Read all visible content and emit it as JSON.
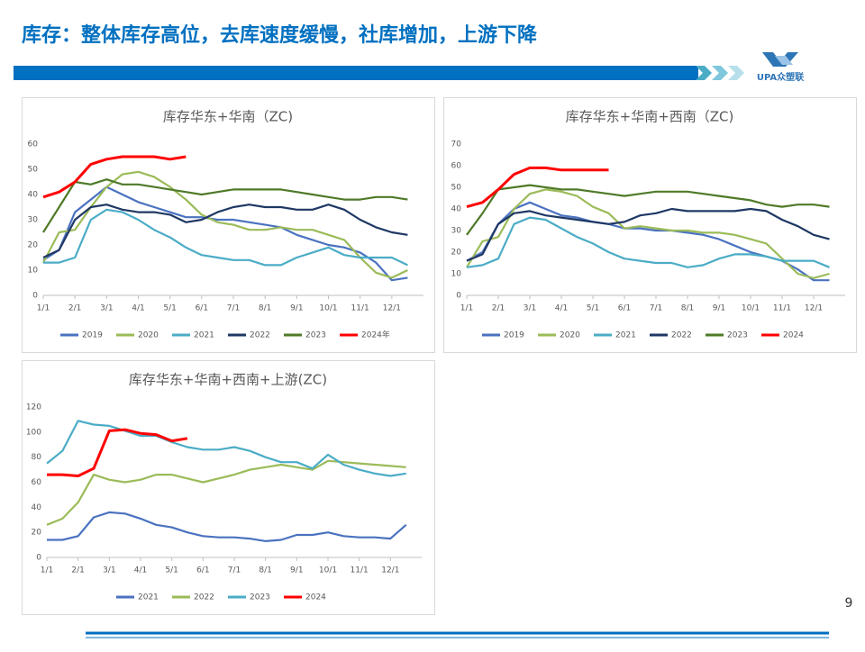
{
  "header": {
    "title": "库存：整体库存高位，去库速度缓慢，社库增加，上游下降",
    "logo": "UPA众塑联"
  },
  "page_number": "9",
  "chart_data": [
    {
      "type": "line",
      "title": "库存华东+华南（ZC)",
      "categories": [
        "1/1",
        null,
        "2/1",
        null,
        "3/1",
        null,
        "4/1",
        null,
        "5/1",
        null,
        "6/1",
        null,
        "7/1",
        null,
        "8/1",
        null,
        "9/1",
        null,
        "10/1",
        null,
        "11/1",
        null,
        "12/1",
        null
      ],
      "ylim": [
        0,
        60
      ],
      "yticks": [
        0,
        10,
        20,
        30,
        40,
        50,
        60
      ],
      "series": [
        {
          "name": "2019",
          "color": "#4a72c0",
          "values": [
            14,
            18,
            33,
            38,
            43,
            40,
            37,
            35,
            33,
            31,
            31,
            30,
            30,
            29,
            28,
            27,
            24,
            22,
            20,
            19,
            17,
            13,
            6,
            7
          ]
        },
        {
          "name": "2020",
          "color": "#9bbb59",
          "values": [
            13,
            25,
            26,
            35,
            43,
            48,
            49,
            47,
            43,
            38,
            32,
            29,
            28,
            26,
            26,
            27,
            26,
            26,
            24,
            22,
            15,
            9,
            7,
            10
          ]
        },
        {
          "name": "2021",
          "color": "#4bacc6",
          "values": [
            13,
            13,
            15,
            30,
            34,
            33,
            30,
            26,
            23,
            19,
            16,
            15,
            14,
            14,
            12,
            12,
            15,
            17,
            19,
            16,
            15,
            15,
            15,
            12
          ]
        },
        {
          "name": "2022",
          "color": "#1f3864",
          "values": [
            15,
            18,
            30,
            35,
            36,
            34,
            33,
            33,
            32,
            29,
            30,
            33,
            35,
            36,
            35,
            35,
            34,
            34,
            36,
            34,
            30,
            27,
            25,
            24
          ]
        },
        {
          "name": "2023",
          "color": "#4f7a28",
          "values": [
            25,
            35,
            45,
            44,
            46,
            44,
            44,
            43,
            42,
            41,
            40,
            41,
            42,
            42,
            42,
            42,
            41,
            40,
            39,
            38,
            38,
            39,
            39,
            38
          ]
        },
        {
          "name": "2024年",
          "color": "#ff0000",
          "values": [
            39,
            41,
            45,
            52,
            54,
            55,
            55,
            55,
            54,
            55,
            null,
            null,
            null,
            null,
            null,
            null,
            null,
            null,
            null,
            null,
            null,
            null,
            null,
            null
          ]
        }
      ]
    },
    {
      "type": "line",
      "title": "库存华东+华南+西南（ZC)",
      "categories": [
        "1/1",
        null,
        "2/1",
        null,
        "3/1",
        null,
        "4/1",
        null,
        "5/1",
        null,
        "6/1",
        null,
        "7/1",
        null,
        "8/1",
        null,
        "9/1",
        null,
        "10/1",
        null,
        "11/1",
        null,
        "12/1",
        null
      ],
      "ylim": [
        0,
        70
      ],
      "yticks": [
        0,
        10,
        20,
        30,
        40,
        50,
        60,
        70
      ],
      "series": [
        {
          "name": "2019",
          "color": "#4a72c0",
          "values": [
            16,
            20,
            33,
            40,
            43,
            40,
            37,
            36,
            34,
            33,
            31,
            31,
            30,
            30,
            29,
            28,
            26,
            23,
            20,
            18,
            16,
            12,
            7,
            7
          ]
        },
        {
          "name": "2020",
          "color": "#9bbb59",
          "values": [
            13,
            25,
            27,
            40,
            47,
            49,
            48,
            46,
            41,
            38,
            31,
            32,
            31,
            30,
            30,
            29,
            29,
            28,
            26,
            24,
            17,
            10,
            8,
            10
          ]
        },
        {
          "name": "2021",
          "color": "#4bacc6",
          "values": [
            13,
            14,
            17,
            33,
            36,
            35,
            31,
            27,
            24,
            20,
            17,
            16,
            15,
            15,
            13,
            14,
            17,
            19,
            19,
            18,
            16,
            16,
            16,
            13
          ]
        },
        {
          "name": "2022",
          "color": "#1f3864",
          "values": [
            16,
            19,
            33,
            38,
            39,
            37,
            36,
            35,
            34,
            33,
            34,
            37,
            38,
            40,
            39,
            39,
            39,
            39,
            40,
            39,
            35,
            32,
            28,
            26
          ]
        },
        {
          "name": "2023",
          "color": "#4f7a28",
          "values": [
            28,
            38,
            49,
            50,
            51,
            50,
            49,
            49,
            48,
            47,
            46,
            47,
            48,
            48,
            48,
            47,
            46,
            45,
            44,
            42,
            41,
            42,
            42,
            41
          ]
        },
        {
          "name": "2024",
          "color": "#ff0000",
          "values": [
            41,
            43,
            49,
            56,
            59,
            59,
            58,
            58,
            58,
            58,
            null,
            null,
            null,
            null,
            null,
            null,
            null,
            null,
            null,
            null,
            null,
            null,
            null,
            null
          ]
        }
      ]
    },
    {
      "type": "line",
      "title": "库存华东+华南+西南+上游(ZC)",
      "categories": [
        "1/1",
        null,
        "2/1",
        null,
        "3/1",
        null,
        "4/1",
        null,
        "5/1",
        null,
        "6/1",
        null,
        "7/1",
        null,
        "8/1",
        null,
        "9/1",
        null,
        "10/1",
        null,
        "11/1",
        null,
        "12/1",
        null
      ],
      "ylim": [
        0,
        120
      ],
      "yticks": [
        0,
        20,
        40,
        60,
        80,
        100,
        120
      ],
      "series": [
        {
          "name": "2021",
          "color": "#4a72c0",
          "values": [
            14,
            14,
            17,
            32,
            36,
            35,
            31,
            26,
            24,
            20,
            17,
            16,
            16,
            15,
            13,
            14,
            18,
            18,
            20,
            17,
            16,
            16,
            15,
            26
          ]
        },
        {
          "name": "2022",
          "color": "#9bbb59",
          "values": [
            26,
            31,
            44,
            66,
            62,
            60,
            62,
            66,
            66,
            63,
            60,
            63,
            66,
            70,
            72,
            74,
            72,
            70,
            77,
            76,
            75,
            74,
            73,
            72
          ]
        },
        {
          "name": "2023",
          "color": "#4bacc6",
          "values": [
            75,
            85,
            109,
            106,
            105,
            101,
            97,
            97,
            92,
            88,
            86,
            86,
            88,
            85,
            80,
            76,
            76,
            71,
            82,
            74,
            70,
            67,
            65,
            67
          ]
        },
        {
          "name": "2024",
          "color": "#ff0000",
          "values": [
            66,
            66,
            65,
            71,
            101,
            102,
            99,
            98,
            93,
            95,
            null,
            null,
            null,
            null,
            null,
            null,
            null,
            null,
            null,
            null,
            null,
            null,
            null,
            null
          ]
        }
      ]
    }
  ]
}
